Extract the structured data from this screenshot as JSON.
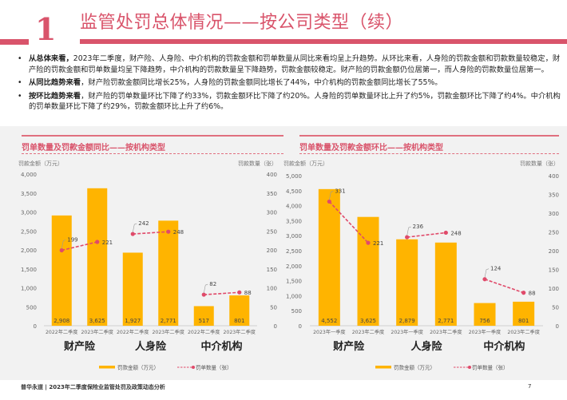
{
  "header": {
    "section_number": "1",
    "title": "监管处罚总体情况——按公司类型（续）"
  },
  "bullets": [
    {
      "lead": "从总体来看，",
      "text": "2023年二季度，财产险、人身险、中介机构的罚款金额和罚单数量从同比来看均呈上升趋势。从环比来看，人身险的罚款金额和罚款数量较稳定，财产险的罚款金额和罚单数量均呈下降趋势，中介机构的罚款数量呈下降趋势，罚款金额较稳定。财产险的罚款金额仍位居第一，而人身险的罚款数量位居第一。"
    },
    {
      "lead": "从同比趋势来看",
      "text": "，财产险罚款金额同比增长25%，人身险的罚款金额同比增长了44%，中介机构的罚款金额同比增长了55%。"
    },
    {
      "lead": "按环比趋势来看",
      "text": "，财产险的罚单数量环比下降了约33%，罚款金额环比下降了约20%。人身险的罚单数量环比上升了约5%，罚款金额环比下降了约4%。中介机构的罚单数量环比下降了约29%，罚款金额环比上升了约6%。"
    }
  ],
  "colors": {
    "accent": "#d9546b",
    "bar": "#ffb400",
    "line": "#e04a6a",
    "panel_bg": "#f2f2f2"
  },
  "chart_data": [
    {
      "type": "bar",
      "title": "罚单数量及罚款金额同比——按机构类型",
      "ylabel": "罚款金额（万元）",
      "y2label": "罚款数量（张）",
      "ylim": [
        0,
        4000
      ],
      "y2lim": [
        0,
        400
      ],
      "yticks": [
        "0",
        "500",
        "1,000",
        "1,500",
        "2,000",
        "2,500",
        "3,000",
        "3,500",
        "4,000"
      ],
      "y2ticks": [
        "0",
        "50",
        "100",
        "150",
        "200",
        "250",
        "300",
        "350",
        "400"
      ],
      "categories": [
        "2022年二季度",
        "2023年二季度",
        "2022年二季度",
        "2023年二季度",
        "2022年二季度",
        "2023年二季度"
      ],
      "groups": [
        "财产险",
        "人身险",
        "中介机构"
      ],
      "series": [
        {
          "name": "罚款金额（万元）",
          "kind": "bar",
          "axis": "left",
          "values": [
            2908,
            3625,
            1927,
            2771,
            517,
            801
          ],
          "labels": [
            "2,908",
            "3,625",
            "1,927",
            "2,771",
            "517",
            "801"
          ]
        },
        {
          "name": "罚单数量（张）",
          "kind": "line",
          "axis": "right",
          "values": [
            199,
            221,
            242,
            248,
            82,
            88
          ],
          "labels": [
            "199",
            "221",
            "242",
            "248",
            "82",
            "88"
          ]
        }
      ],
      "legend": [
        "罚款金额（万元）",
        "罚单数量（张）"
      ],
      "legend_position": "bottom"
    },
    {
      "type": "bar",
      "title": "罚单数量及罚款金额环比——按机构类型",
      "ylabel": "罚款金额（万元）",
      "y2label": "罚款数量（张）",
      "ylim": [
        0,
        5000
      ],
      "y2lim": [
        0,
        400
      ],
      "yticks": [
        "0",
        "500",
        "1,000",
        "1,500",
        "2,000",
        "2,500",
        "3,000",
        "3,500",
        "4,000",
        "4,500",
        "5,000"
      ],
      "y2ticks": [
        "0",
        "50",
        "100",
        "150",
        "200",
        "250",
        "300",
        "350",
        "400"
      ],
      "categories": [
        "2023年一季度",
        "2023年二季度",
        "2023年一季度",
        "2023年二季度",
        "2023年一季度",
        "2023年二季度"
      ],
      "groups": [
        "财产险",
        "人身险",
        "中介机构"
      ],
      "series": [
        {
          "name": "罚款金额（万元）",
          "kind": "bar",
          "axis": "left",
          "values": [
            4552,
            3625,
            2879,
            2771,
            756,
            801
          ],
          "labels": [
            "4,552",
            "3,625",
            "2,879",
            "2,771",
            "756",
            "801"
          ]
        },
        {
          "name": "罚单数量（张）",
          "kind": "line",
          "axis": "right",
          "values": [
            331,
            221,
            236,
            248,
            124,
            88
          ],
          "labels": [
            "331",
            "221",
            "236",
            "248",
            "124",
            "88"
          ]
        }
      ],
      "legend": [
        "罚款金额（万元）",
        "罚单数量（张）"
      ],
      "legend_position": "bottom"
    }
  ],
  "footer": {
    "source": "普华永道 | 2023年二季度保险业监管处罚及政策动态分析",
    "page": "7"
  }
}
